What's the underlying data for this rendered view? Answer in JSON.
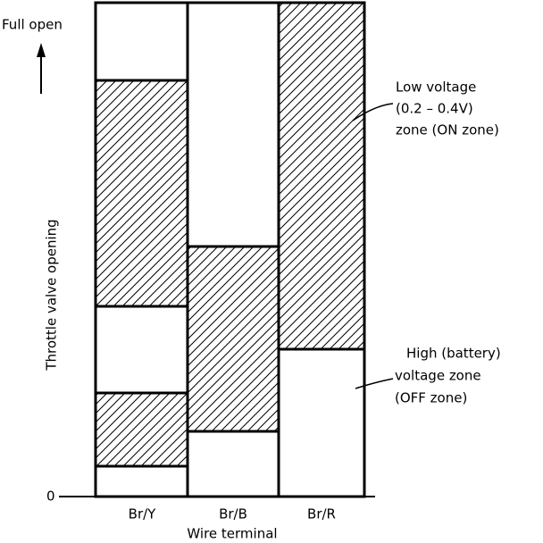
{
  "y_axis": {
    "top": "Full open",
    "bottom": "0",
    "label": "Throttle valve opening"
  },
  "x_axis": {
    "categories": [
      "Br/Y",
      "Br/B",
      "Br/R"
    ],
    "label": "Wire terminal"
  },
  "annotations": [
    {
      "lines": [
        "Low voltage",
        "(0.2 – 0.4V)",
        "zone (ON zone)"
      ]
    },
    {
      "lines": [
        "High (battery)",
        "voltage zone",
        "(OFF zone)"
      ]
    }
  ]
}
